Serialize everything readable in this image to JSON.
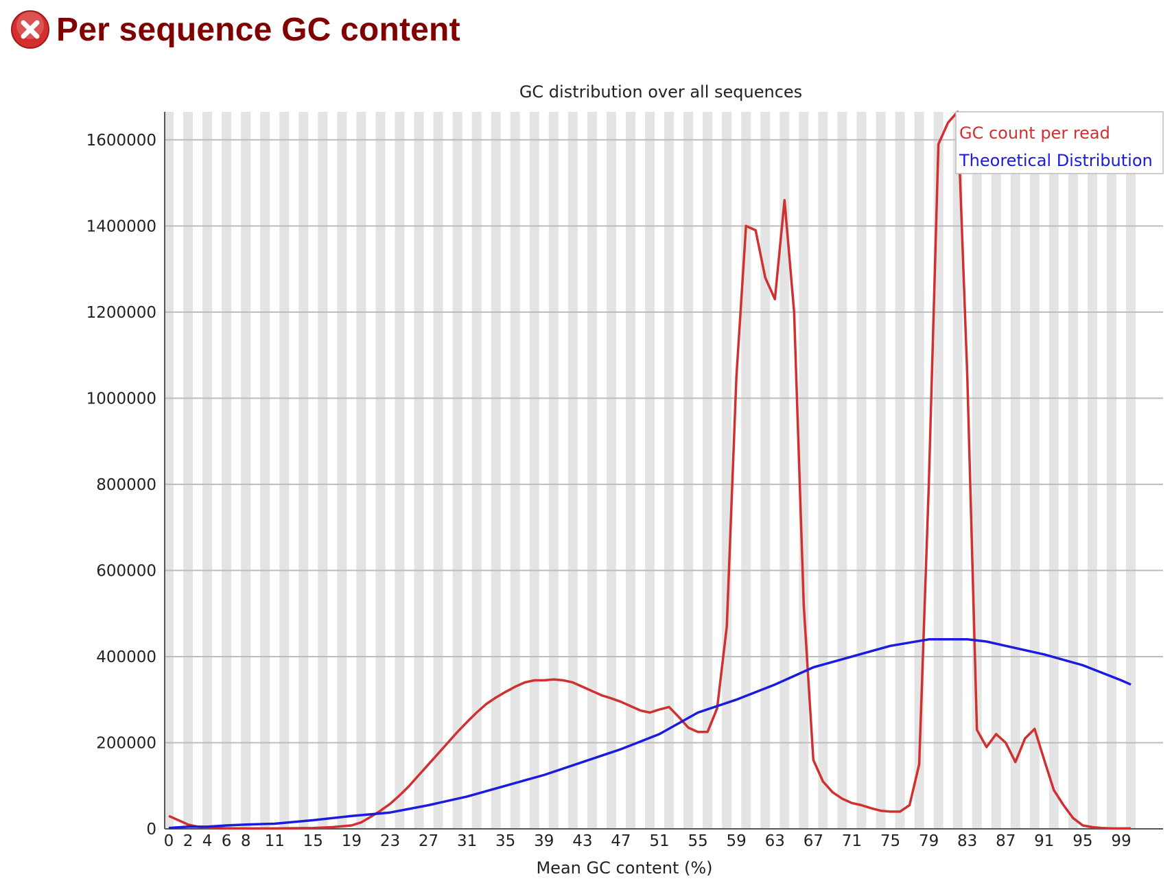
{
  "header": {
    "title": "Per sequence GC content",
    "status_icon": "error-x-icon",
    "status_color": "#d32f2f"
  },
  "chart_data": {
    "type": "line",
    "title": "GC distribution over all sequences",
    "xlabel": "Mean GC content (%)",
    "ylabel": "",
    "x_tick_labels": [
      "0",
      "2",
      "4",
      "6",
      "8",
      "11",
      "15",
      "19",
      "23",
      "27",
      "31",
      "35",
      "39",
      "43",
      "47",
      "51",
      "55",
      "59",
      "63",
      "67",
      "71",
      "75",
      "79",
      "83",
      "87",
      "91",
      "95",
      "99"
    ],
    "y_tick_labels": [
      "0",
      "200000",
      "400000",
      "600000",
      "800000",
      "1000000",
      "1200000",
      "1400000",
      "1600000"
    ],
    "ylim": [
      0,
      1665000
    ],
    "xlim": [
      0,
      100
    ],
    "grid": true,
    "background_bands": "alternating light gray vertical bands per x unit",
    "legend_position": "top-right",
    "series": [
      {
        "name": "GC count per read",
        "color": "#d03030",
        "points": [
          [
            0,
            30000
          ],
          [
            1,
            20000
          ],
          [
            2,
            10000
          ],
          [
            3,
            5000
          ],
          [
            4,
            3000
          ],
          [
            5,
            2000
          ],
          [
            6,
            1500
          ],
          [
            8,
            1000
          ],
          [
            11,
            1000
          ],
          [
            15,
            2000
          ],
          [
            17,
            4000
          ],
          [
            19,
            8000
          ],
          [
            20,
            15000
          ],
          [
            21,
            28000
          ],
          [
            22,
            42000
          ],
          [
            23,
            58000
          ],
          [
            24,
            78000
          ],
          [
            25,
            100000
          ],
          [
            26,
            125000
          ],
          [
            27,
            150000
          ],
          [
            28,
            175000
          ],
          [
            29,
            200000
          ],
          [
            30,
            225000
          ],
          [
            31,
            248000
          ],
          [
            32,
            270000
          ],
          [
            33,
            290000
          ],
          [
            34,
            305000
          ],
          [
            35,
            318000
          ],
          [
            36,
            330000
          ],
          [
            37,
            340000
          ],
          [
            38,
            345000
          ],
          [
            39,
            345000
          ],
          [
            40,
            347000
          ],
          [
            41,
            345000
          ],
          [
            42,
            340000
          ],
          [
            43,
            330000
          ],
          [
            44,
            320000
          ],
          [
            45,
            310000
          ],
          [
            46,
            303000
          ],
          [
            47,
            295000
          ],
          [
            48,
            285000
          ],
          [
            49,
            275000
          ],
          [
            50,
            270000
          ],
          [
            51,
            277000
          ],
          [
            52,
            283000
          ],
          [
            53,
            260000
          ],
          [
            54,
            235000
          ],
          [
            55,
            225000
          ],
          [
            56,
            225000
          ],
          [
            57,
            280000
          ],
          [
            58,
            470000
          ],
          [
            59,
            1050000
          ],
          [
            60,
            1400000
          ],
          [
            61,
            1390000
          ],
          [
            62,
            1280000
          ],
          [
            63,
            1230000
          ],
          [
            64,
            1460000
          ],
          [
            65,
            1200000
          ],
          [
            66,
            520000
          ],
          [
            67,
            160000
          ],
          [
            68,
            110000
          ],
          [
            69,
            85000
          ],
          [
            70,
            70000
          ],
          [
            71,
            60000
          ],
          [
            72,
            55000
          ],
          [
            73,
            48000
          ],
          [
            74,
            42000
          ],
          [
            75,
            40000
          ],
          [
            76,
            40000
          ],
          [
            77,
            55000
          ],
          [
            78,
            150000
          ],
          [
            79,
            800000
          ],
          [
            80,
            1590000
          ],
          [
            81,
            1640000
          ],
          [
            82,
            1665000
          ],
          [
            83,
            1050000
          ],
          [
            84,
            230000
          ],
          [
            85,
            190000
          ],
          [
            86,
            220000
          ],
          [
            87,
            200000
          ],
          [
            88,
            155000
          ],
          [
            89,
            210000
          ],
          [
            90,
            232000
          ],
          [
            91,
            160000
          ],
          [
            92,
            90000
          ],
          [
            93,
            55000
          ],
          [
            94,
            25000
          ],
          [
            95,
            8000
          ],
          [
            96,
            4000
          ],
          [
            97,
            2000
          ],
          [
            98,
            1000
          ],
          [
            99,
            1000
          ],
          [
            100,
            1000
          ]
        ]
      },
      {
        "name": "Theoretical Distribution",
        "color": "#1a1ae0",
        "points": [
          [
            0,
            2000
          ],
          [
            2,
            5000
          ],
          [
            4,
            5000
          ],
          [
            6,
            8000
          ],
          [
            8,
            10000
          ],
          [
            11,
            12000
          ],
          [
            15,
            20000
          ],
          [
            19,
            30000
          ],
          [
            23,
            38000
          ],
          [
            27,
            55000
          ],
          [
            31,
            75000
          ],
          [
            35,
            100000
          ],
          [
            39,
            125000
          ],
          [
            43,
            155000
          ],
          [
            47,
            185000
          ],
          [
            51,
            220000
          ],
          [
            55,
            270000
          ],
          [
            59,
            300000
          ],
          [
            63,
            335000
          ],
          [
            67,
            375000
          ],
          [
            71,
            400000
          ],
          [
            75,
            425000
          ],
          [
            79,
            440000
          ],
          [
            81,
            440000
          ],
          [
            83,
            440000
          ],
          [
            85,
            435000
          ],
          [
            87,
            425000
          ],
          [
            91,
            405000
          ],
          [
            95,
            380000
          ],
          [
            99,
            345000
          ],
          [
            100,
            335000
          ]
        ]
      }
    ]
  }
}
